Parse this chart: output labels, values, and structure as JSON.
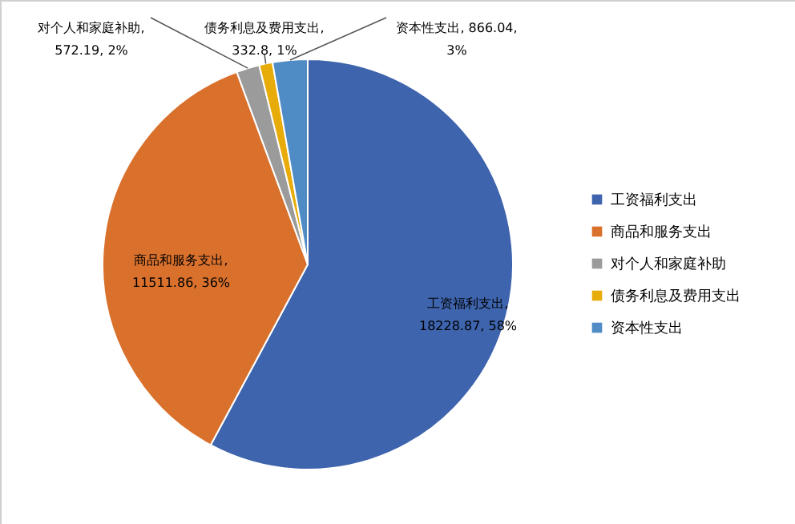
{
  "chart_data": {
    "type": "pie",
    "categories": [
      "工资福利支出",
      "商品和服务支出",
      "对个人和家庭补助",
      "债务利息及费用支出",
      "资本性支出"
    ],
    "values": [
      18228.87,
      11511.86,
      572.19,
      332.8,
      866.04
    ],
    "colors": [
      "#3e64ad",
      "#d9712d",
      "#9b9b9b",
      "#e8ac0a",
      "#4f8bc4"
    ],
    "value_labels": [
      "工资福利支出,\n18228.87, 58%",
      "商品和服务支出,\n11511.86, 36%",
      "对个人和家庭补助,\n572.19, 2%",
      "债务利息及费用支出,\n332.8, 1%",
      "资本性支出, 866.04,\n3%"
    ],
    "legend": "right"
  }
}
